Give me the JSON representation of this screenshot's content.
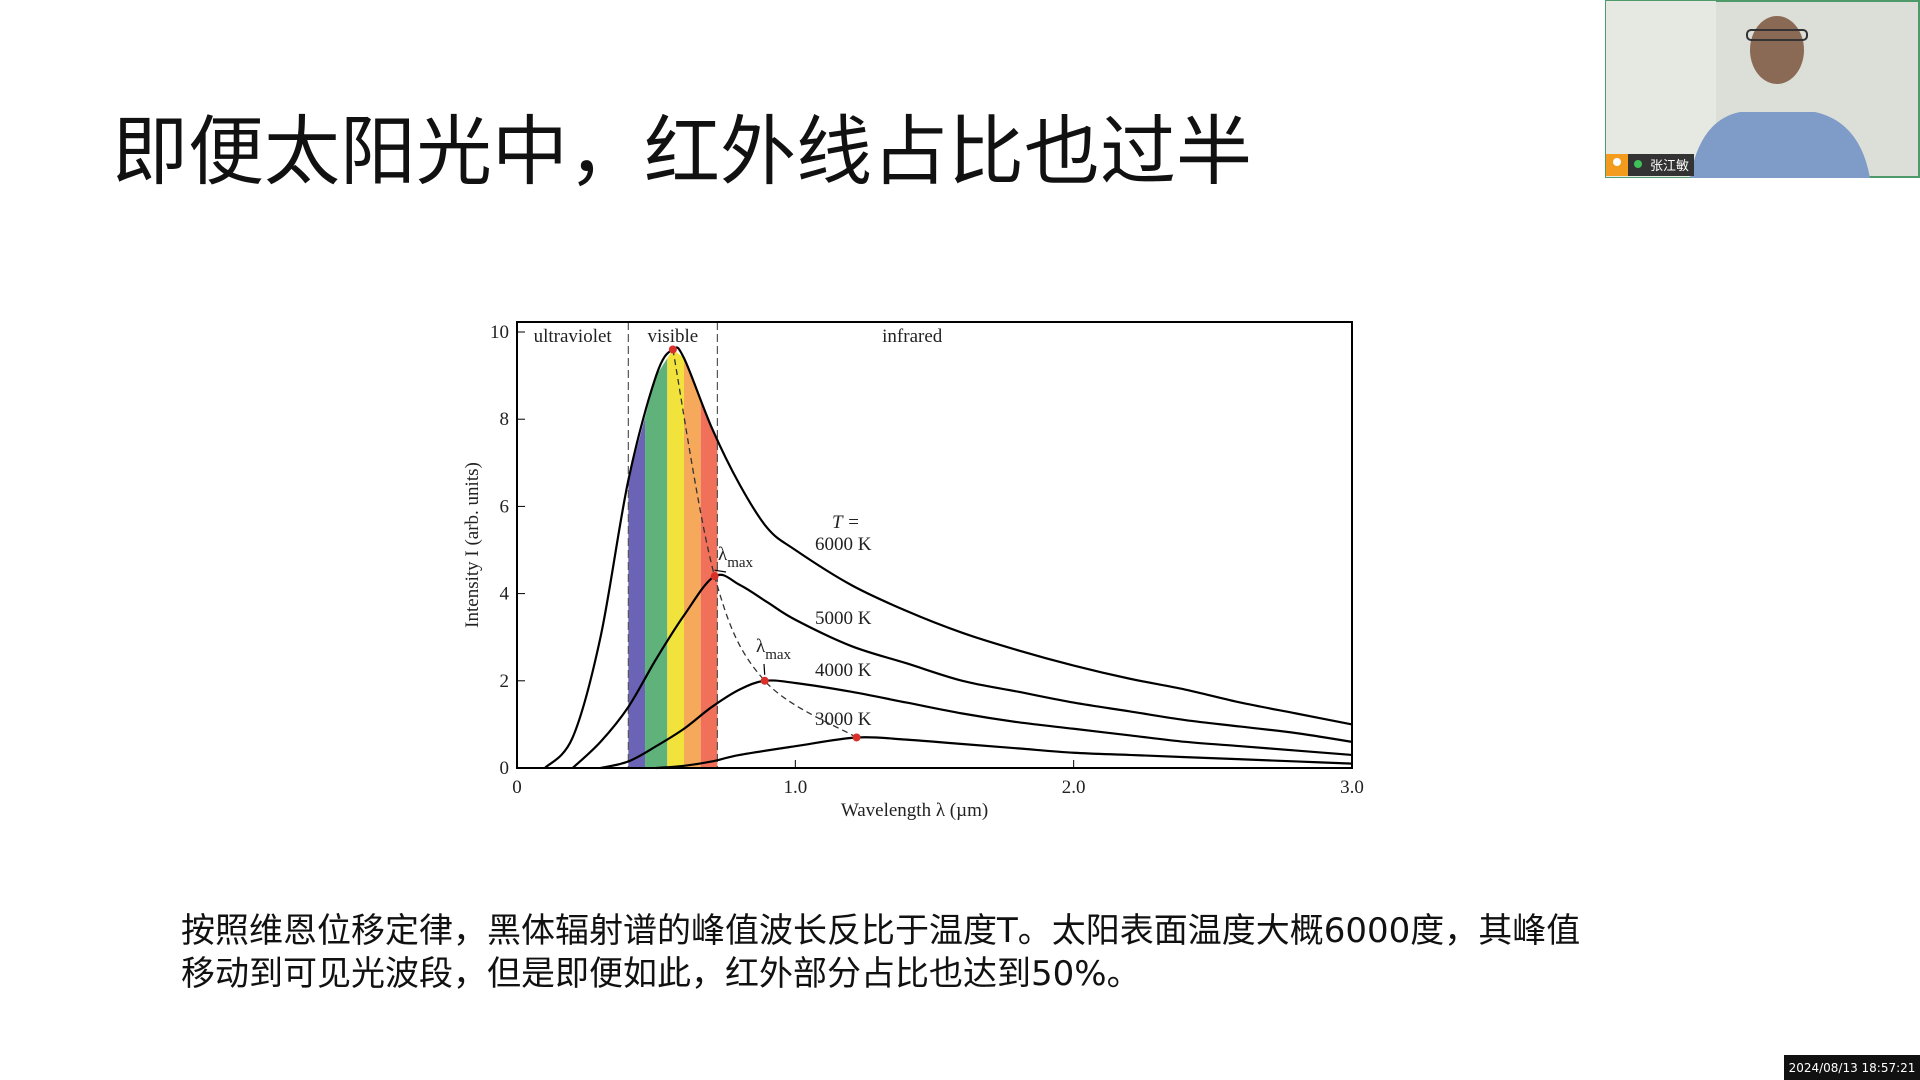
{
  "slide": {
    "title": "即便太阳光中，红外线占比也过半",
    "caption": [
      "按照维恩位移定律，黑体辐射谱的峰值波长反比于温度T。太阳表面温度大概6000度，其峰值",
      "移动到可见光波段，但是即便如此，红外部分占比也达到50%。"
    ]
  },
  "chart_data": {
    "type": "line",
    "xlabel": "Wavelength  λ  (µm)",
    "ylabel": "Intensity  I  (arb. units)",
    "xlim": [
      0,
      3
    ],
    "ylim": [
      0,
      10
    ],
    "xticks": [
      0,
      {
        "value": 1,
        "label": "1.0"
      },
      {
        "value": 2,
        "label": "2.0"
      },
      {
        "value": 3,
        "label": "3.0"
      }
    ],
    "yticks": [
      0,
      2,
      4,
      6,
      8,
      10
    ],
    "legend_title": "T =",
    "peak_symbol": "λ",
    "peak_subscript": "max",
    "peak_color": "#d9302a",
    "regions": [
      {
        "label": "ultraviolet",
        "xlim": [
          0,
          0.4
        ]
      },
      {
        "label": "visible",
        "xlim": [
          0.4,
          0.72
        ]
      },
      {
        "label": "infrared",
        "xlim": [
          0.72,
          3
        ]
      }
    ],
    "spectrum": [
      {
        "color": "#6b63b5",
        "xlim": [
          0.4,
          0.46
        ]
      },
      {
        "color": "#5fb37a",
        "xlim": [
          0.46,
          0.54
        ]
      },
      {
        "color": "#f2e33c",
        "xlim": [
          0.54,
          0.6
        ]
      },
      {
        "color": "#f6a95a",
        "xlim": [
          0.6,
          0.66
        ]
      },
      {
        "color": "#f0705a",
        "xlim": [
          0.66,
          0.72
        ]
      }
    ],
    "series": [
      {
        "name": "6000 K",
        "color": "#000000",
        "x": [
          0.1,
          0.2,
          0.3,
          0.4,
          0.5,
          0.56,
          0.6,
          0.7,
          0.8,
          0.9,
          1.0,
          1.2,
          1.4,
          1.6,
          1.8,
          2.0,
          2.2,
          2.4,
          2.6,
          2.8,
          3.0
        ],
        "values": [
          0,
          0.7,
          3.0,
          6.6,
          9.0,
          9.6,
          9.4,
          7.8,
          6.5,
          5.5,
          5.0,
          4.2,
          3.6,
          3.1,
          2.7,
          2.35,
          2.05,
          1.8,
          1.5,
          1.25,
          1.0
        ]
      },
      {
        "name": "5000 K",
        "color": "#000000",
        "x": [
          0.2,
          0.3,
          0.4,
          0.5,
          0.6,
          0.71,
          0.8,
          0.9,
          1.0,
          1.2,
          1.4,
          1.6,
          1.8,
          2.0,
          2.2,
          2.4,
          2.6,
          2.8,
          3.0
        ],
        "values": [
          0,
          0.6,
          1.4,
          2.5,
          3.5,
          4.4,
          4.2,
          3.8,
          3.4,
          2.8,
          2.4,
          2.0,
          1.75,
          1.5,
          1.3,
          1.1,
          0.95,
          0.8,
          0.6
        ]
      },
      {
        "name": "4000 K",
        "color": "#000000",
        "x": [
          0.3,
          0.4,
          0.5,
          0.6,
          0.7,
          0.8,
          0.89,
          1.0,
          1.2,
          1.4,
          1.6,
          1.8,
          2.0,
          2.2,
          2.4,
          2.6,
          2.8,
          3.0
        ],
        "values": [
          0,
          0.15,
          0.5,
          0.9,
          1.4,
          1.8,
          2.0,
          1.95,
          1.75,
          1.5,
          1.25,
          1.05,
          0.9,
          0.75,
          0.6,
          0.5,
          0.4,
          0.3
        ]
      },
      {
        "name": "3000 K",
        "color": "#000000",
        "x": [
          0.5,
          0.6,
          0.7,
          0.8,
          1.0,
          1.22,
          1.4,
          1.6,
          1.8,
          2.0,
          2.2,
          2.4,
          2.6,
          2.8,
          3.0
        ],
        "values": [
          0,
          0.05,
          0.15,
          0.3,
          0.5,
          0.7,
          0.65,
          0.55,
          0.45,
          0.35,
          0.3,
          0.25,
          0.2,
          0.15,
          0.1
        ]
      }
    ]
  },
  "video": {
    "participant": "张江敏",
    "timestamp": "2024/08/13 18:57:21"
  }
}
